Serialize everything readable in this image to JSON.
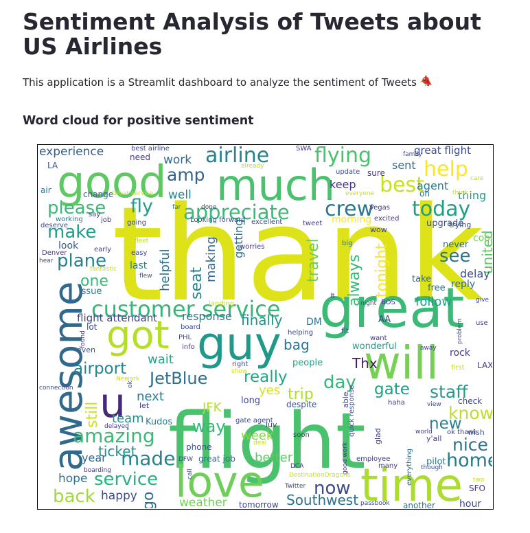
{
  "app": {
    "title": "Sentiment Analysis of Tweets about US Airlines",
    "description": "This application is a Streamlit dashboard to analyze the sentiment of Tweets",
    "description_icon": "red-bird-icon"
  },
  "section": {
    "heading": "Word cloud for positive sentiment"
  },
  "wordcloud": {
    "colormap": "viridis",
    "background": "#ffffff",
    "words": [
      {
        "id": "thank",
        "text": "thank"
      },
      {
        "id": "flight",
        "text": "flight"
      },
      {
        "id": "great",
        "text": "great"
      },
      {
        "id": "awesome",
        "text": "awesome"
      },
      {
        "id": "good",
        "text": "good"
      },
      {
        "id": "much",
        "text": "much"
      },
      {
        "id": "love",
        "text": "love"
      },
      {
        "id": "time",
        "text": "time"
      },
      {
        "id": "guy",
        "text": "guy"
      },
      {
        "id": "will",
        "text": "will"
      },
      {
        "id": "got",
        "text": "got"
      },
      {
        "id": "u",
        "text": "u"
      },
      {
        "id": "customer-service",
        "text": "customer service"
      },
      {
        "id": "appreciate",
        "text": "appreciate"
      },
      {
        "id": "airline",
        "text": "airline"
      },
      {
        "id": "flying",
        "text": "flying"
      },
      {
        "id": "help",
        "text": "help"
      },
      {
        "id": "best",
        "text": "best"
      },
      {
        "id": "today",
        "text": "today"
      },
      {
        "id": "crew",
        "text": "crew"
      },
      {
        "id": "please",
        "text": "please"
      },
      {
        "id": "fly",
        "text": "fly"
      },
      {
        "id": "amp",
        "text": "amp"
      },
      {
        "id": "make",
        "text": "make"
      },
      {
        "id": "plane",
        "text": "plane"
      },
      {
        "id": "one",
        "text": "one"
      },
      {
        "id": "see",
        "text": "see"
      },
      {
        "id": "jetblue",
        "text": "JetBlue"
      },
      {
        "id": "airport",
        "text": "airport"
      },
      {
        "id": "amazing",
        "text": "amazing"
      },
      {
        "id": "made",
        "text": "made"
      },
      {
        "id": "back",
        "text": "back"
      },
      {
        "id": "now",
        "text": "now"
      },
      {
        "id": "day",
        "text": "day"
      },
      {
        "id": "really",
        "text": "really"
      },
      {
        "id": "gate",
        "text": "gate"
      },
      {
        "id": "staff",
        "text": "staff"
      },
      {
        "id": "know",
        "text": "know"
      },
      {
        "id": "home",
        "text": "home"
      },
      {
        "id": "nice",
        "text": "nice"
      },
      {
        "id": "new",
        "text": "new"
      },
      {
        "id": "way",
        "text": "way"
      },
      {
        "id": "ticket",
        "text": "ticket"
      },
      {
        "id": "service",
        "text": "service"
      },
      {
        "id": "southwest",
        "text": "Southwest"
      },
      {
        "id": "next",
        "text": "next"
      },
      {
        "id": "team",
        "text": "team"
      },
      {
        "id": "trip",
        "text": "trip"
      },
      {
        "id": "bag",
        "text": "bag"
      },
      {
        "id": "thx",
        "text": "Thx"
      },
      {
        "id": "finally",
        "text": "finally"
      },
      {
        "id": "follow",
        "text": "follow"
      },
      {
        "id": "always",
        "text": "always"
      },
      {
        "id": "tonight",
        "text": "tonight"
      },
      {
        "id": "united",
        "text": "united"
      },
      {
        "id": "travel",
        "text": "travel"
      },
      {
        "id": "seat",
        "text": "seat"
      },
      {
        "id": "still",
        "text": "still"
      },
      {
        "id": "wait",
        "text": "wait"
      },
      {
        "id": "experience",
        "text": "experience"
      },
      {
        "id": "work",
        "text": "work"
      },
      {
        "id": "well",
        "text": "well"
      },
      {
        "id": "keep",
        "text": "keep"
      },
      {
        "id": "sent",
        "text": "sent"
      },
      {
        "id": "agent",
        "text": "agent"
      },
      {
        "id": "great-flight",
        "text": "great flight"
      },
      {
        "id": "thing",
        "text": "thing"
      },
      {
        "id": "upgrade",
        "text": "upgrade"
      },
      {
        "id": "look",
        "text": "look"
      },
      {
        "id": "last",
        "text": "last"
      },
      {
        "id": "helpful",
        "text": "helpful"
      },
      {
        "id": "making",
        "text": "making"
      },
      {
        "id": "getting",
        "text": "getting"
      },
      {
        "id": "delay",
        "text": "delay"
      },
      {
        "id": "reply",
        "text": "reply"
      },
      {
        "id": "cool",
        "text": "cool"
      },
      {
        "id": "never",
        "text": "never"
      },
      {
        "id": "response",
        "text": "response"
      },
      {
        "id": "flight-attendant",
        "text": "flight attendant"
      },
      {
        "id": "week",
        "text": "week"
      },
      {
        "id": "jfk",
        "text": "JFK"
      },
      {
        "id": "yes",
        "text": "yes"
      },
      {
        "id": "year",
        "text": "year"
      },
      {
        "id": "hope",
        "text": "hope"
      },
      {
        "id": "happy",
        "text": "happy"
      },
      {
        "id": "go",
        "text": "go"
      },
      {
        "id": "better",
        "text": "better"
      },
      {
        "id": "weather",
        "text": "weather"
      },
      {
        "id": "hour",
        "text": "hour"
      },
      {
        "id": "rock",
        "text": "rock"
      },
      {
        "id": "issue",
        "text": "issue"
      },
      {
        "id": "morning",
        "text": "morning"
      },
      {
        "id": "wonderful",
        "text": "wonderful"
      },
      {
        "id": "people",
        "text": "people"
      },
      {
        "id": "dm",
        "text": "DM"
      },
      {
        "id": "aa",
        "text": "AA"
      },
      {
        "id": "free",
        "text": "free"
      },
      {
        "id": "take",
        "text": "take"
      },
      {
        "id": "kudos",
        "text": "Kudos"
      },
      {
        "id": "phone",
        "text": "phone"
      },
      {
        "id": "great-job",
        "text": "great job"
      },
      {
        "id": "tomorrow",
        "text": "tomorrow"
      },
      {
        "id": "another",
        "text": "another"
      },
      {
        "id": "pilot",
        "text": "pilot"
      },
      {
        "id": "sfo",
        "text": "SFO"
      },
      {
        "id": "lax",
        "text": "LAX"
      },
      {
        "id": "check",
        "text": "check"
      },
      {
        "id": "wish",
        "text": "wish"
      },
      {
        "id": "yall",
        "text": "y'all"
      },
      {
        "id": "ok-thank",
        "text": "ok thank"
      },
      {
        "id": "best-airline",
        "text": "best airline"
      },
      {
        "id": "need",
        "text": "need"
      },
      {
        "id": "la",
        "text": "LA"
      },
      {
        "id": "air",
        "text": "air"
      },
      {
        "id": "change",
        "text": "change"
      },
      {
        "id": "working",
        "text": "working"
      },
      {
        "id": "deserve",
        "text": "deserve"
      },
      {
        "id": "say",
        "text": "say"
      },
      {
        "id": "job",
        "text": "job"
      },
      {
        "id": "going",
        "text": "going"
      },
      {
        "id": "denver",
        "text": "Denver"
      },
      {
        "id": "hear",
        "text": "hear"
      },
      {
        "id": "early",
        "text": "early"
      },
      {
        "id": "easy",
        "text": "easy"
      },
      {
        "id": "fleet",
        "text": "fleet"
      },
      {
        "id": "fantastic",
        "text": "fantastic"
      },
      {
        "id": "flew",
        "text": "flew"
      },
      {
        "id": "far",
        "text": "far"
      },
      {
        "id": "done",
        "text": "done"
      },
      {
        "id": "looking-forward",
        "text": "Looking forward"
      },
      {
        "id": "already",
        "text": "already"
      },
      {
        "id": "great-service",
        "text": "Great service"
      },
      {
        "id": "update",
        "text": "update"
      },
      {
        "id": "everyone",
        "text": "everyone"
      },
      {
        "id": "swa",
        "text": "SWA"
      },
      {
        "id": "family",
        "text": "family"
      },
      {
        "id": "sure",
        "text": "sure"
      },
      {
        "id": "excited",
        "text": "excited"
      },
      {
        "id": "oh",
        "text": "oh"
      },
      {
        "id": "vegas",
        "text": "Vegas"
      },
      {
        "id": "wow",
        "text": "wow"
      },
      {
        "id": "excellent",
        "text": "excellent"
      },
      {
        "id": "tweet",
        "text": "tweet"
      },
      {
        "id": "worries",
        "text": "worries"
      },
      {
        "id": "big",
        "text": "big"
      },
      {
        "id": "trying",
        "text": "trying"
      },
      {
        "id": "think",
        "text": "think"
      },
      {
        "id": "care",
        "text": "care"
      },
      {
        "id": "landing",
        "text": "landing"
      },
      {
        "id": "helping",
        "text": "helping"
      },
      {
        "id": "flt",
        "text": "flt"
      },
      {
        "id": "night",
        "text": "night"
      },
      {
        "id": "bos",
        "text": "BOS"
      },
      {
        "id": "lt",
        "text": "lt"
      },
      {
        "id": "give",
        "text": "give"
      },
      {
        "id": "use",
        "text": "use"
      },
      {
        "id": "problem",
        "text": "problem"
      },
      {
        "id": "away",
        "text": "away"
      },
      {
        "id": "first",
        "text": "first"
      },
      {
        "id": "want",
        "text": "want"
      },
      {
        "id": "board",
        "text": "board"
      },
      {
        "id": "lot",
        "text": "lot"
      },
      {
        "id": "found",
        "text": "found"
      },
      {
        "id": "even",
        "text": "even"
      },
      {
        "id": "phl",
        "text": "PHL"
      },
      {
        "id": "info",
        "text": "info"
      },
      {
        "id": "right",
        "text": "right"
      },
      {
        "id": "show",
        "text": "show"
      },
      {
        "id": "newark",
        "text": "Newark"
      },
      {
        "id": "ok",
        "text": "ok"
      },
      {
        "id": "connection",
        "text": "connection"
      },
      {
        "id": "let",
        "text": "let"
      },
      {
        "id": "delayed",
        "text": "delayed"
      },
      {
        "id": "long",
        "text": "long"
      },
      {
        "id": "luv",
        "text": "luv"
      },
      {
        "id": "despite",
        "text": "despite"
      },
      {
        "id": "able",
        "text": "able"
      },
      {
        "id": "quick-response",
        "text": "quick response"
      },
      {
        "id": "haha",
        "text": "haha"
      },
      {
        "id": "view",
        "text": "view"
      },
      {
        "id": "gate-agent",
        "text": "gate agent"
      },
      {
        "id": "soon",
        "text": "soon"
      },
      {
        "id": "glad",
        "text": "glad"
      },
      {
        "id": "world",
        "text": "world"
      },
      {
        "id": "deal",
        "text": "deal"
      },
      {
        "id": "employee",
        "text": "employee"
      },
      {
        "id": "everything",
        "text": "everything"
      },
      {
        "id": "many",
        "text": "many"
      },
      {
        "id": "though",
        "text": "though"
      },
      {
        "id": "good-work",
        "text": "good work"
      },
      {
        "id": "boarding",
        "text": "boarding"
      },
      {
        "id": "dfw",
        "text": "DFW"
      },
      {
        "id": "call",
        "text": "call"
      },
      {
        "id": "dca",
        "text": "DCA"
      },
      {
        "id": "destinationdragons",
        "text": "DestinationDragons"
      },
      {
        "id": "twitter",
        "text": "Twitter"
      },
      {
        "id": "two",
        "text": "two"
      },
      {
        "id": "passbook",
        "text": "passbook"
      }
    ]
  }
}
